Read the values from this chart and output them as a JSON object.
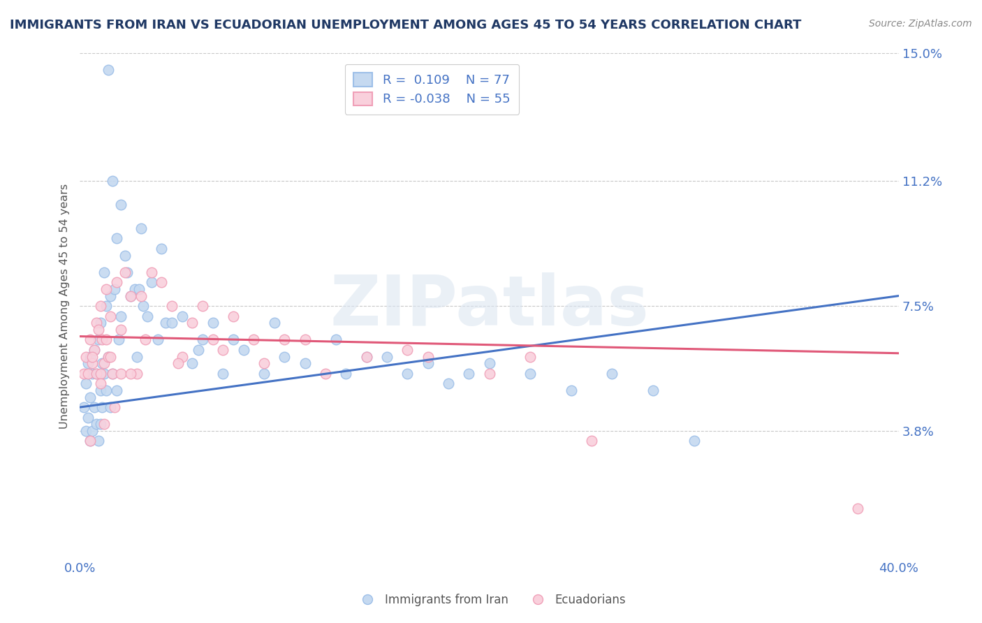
{
  "title": "IMMIGRANTS FROM IRAN VS ECUADORIAN UNEMPLOYMENT AMONG AGES 45 TO 54 YEARS CORRELATION CHART",
  "source": "Source: ZipAtlas.com",
  "ylabel": "Unemployment Among Ages 45 to 54 years",
  "xlabel": "",
  "xlim": [
    0.0,
    40.0
  ],
  "ylim": [
    0.0,
    15.0
  ],
  "yticks": [
    3.8,
    7.5,
    11.2,
    15.0
  ],
  "xticks": [
    0.0,
    40.0
  ],
  "series1_label": "Immigrants from Iran",
  "series1_R": "0.109",
  "series1_N": "77",
  "series1_color": "#c5d9f0",
  "series1_edge_color": "#9dbfe8",
  "series1_line_color": "#4472c4",
  "series2_label": "Ecuadorians",
  "series2_R": "-0.038",
  "series2_N": "55",
  "series2_color": "#f9d0dc",
  "series2_edge_color": "#f0a0b8",
  "series2_line_color": "#e05878",
  "title_color": "#1f3864",
  "axis_color": "#4472c4",
  "grid_color": "#c8c8c8",
  "watermark": "ZIPatlas",
  "background_color": "#ffffff",
  "trend1_x0": 0.0,
  "trend1_y0": 4.5,
  "trend1_x1": 40.0,
  "trend1_y1": 7.8,
  "trend2_x0": 0.0,
  "trend2_y0": 6.6,
  "trend2_x1": 40.0,
  "trend2_y1": 6.1,
  "series1_x": [
    0.2,
    0.3,
    0.3,
    0.4,
    0.4,
    0.5,
    0.5,
    0.5,
    0.6,
    0.6,
    0.7,
    0.7,
    0.8,
    0.8,
    0.9,
    0.9,
    1.0,
    1.0,
    1.0,
    1.1,
    1.1,
    1.2,
    1.2,
    1.3,
    1.3,
    1.4,
    1.5,
    1.5,
    1.6,
    1.7,
    1.8,
    1.8,
    1.9,
    2.0,
    2.2,
    2.3,
    2.5,
    2.7,
    2.9,
    3.1,
    3.3,
    3.5,
    3.8,
    4.2,
    4.5,
    5.0,
    5.5,
    6.0,
    6.5,
    7.0,
    8.0,
    9.0,
    10.0,
    11.0,
    12.5,
    14.0,
    16.0,
    18.0,
    20.0,
    22.0,
    24.0,
    26.0,
    28.0,
    3.0,
    4.0,
    5.8,
    7.5,
    9.5,
    13.0,
    15.0,
    17.0,
    19.0,
    30.0,
    2.0,
    1.6,
    1.4,
    2.8
  ],
  "series1_y": [
    4.5,
    3.8,
    5.2,
    4.2,
    5.8,
    3.5,
    4.8,
    6.0,
    3.8,
    5.5,
    4.5,
    6.2,
    4.0,
    5.5,
    3.5,
    6.5,
    4.0,
    5.0,
    7.0,
    4.5,
    5.8,
    5.5,
    8.5,
    5.0,
    7.5,
    6.0,
    4.5,
    7.8,
    5.5,
    8.0,
    5.0,
    9.5,
    6.5,
    7.2,
    9.0,
    8.5,
    7.8,
    8.0,
    8.0,
    7.5,
    7.2,
    8.2,
    6.5,
    7.0,
    7.0,
    7.2,
    5.8,
    6.5,
    7.0,
    5.5,
    6.2,
    5.5,
    6.0,
    5.8,
    6.5,
    6.0,
    5.5,
    5.2,
    5.8,
    5.5,
    5.0,
    5.5,
    5.0,
    9.8,
    9.2,
    6.2,
    6.5,
    7.0,
    5.5,
    6.0,
    5.8,
    5.5,
    3.5,
    10.5,
    11.2,
    14.5,
    6.0
  ],
  "series2_x": [
    0.2,
    0.3,
    0.4,
    0.5,
    0.6,
    0.7,
    0.8,
    0.8,
    0.9,
    1.0,
    1.0,
    1.1,
    1.2,
    1.3,
    1.3,
    1.4,
    1.5,
    1.6,
    1.8,
    2.0,
    2.2,
    2.5,
    2.8,
    3.0,
    3.5,
    4.0,
    4.5,
    5.5,
    6.0,
    7.0,
    8.5,
    10.0,
    12.0,
    14.0,
    16.0,
    20.0,
    25.0,
    38.0,
    0.6,
    1.0,
    1.5,
    2.0,
    2.5,
    3.2,
    5.0,
    9.0,
    7.5,
    22.0,
    1.7,
    1.2,
    0.5,
    4.8,
    6.5,
    11.0,
    17.0
  ],
  "series2_y": [
    5.5,
    6.0,
    5.5,
    6.5,
    5.8,
    6.2,
    5.5,
    7.0,
    6.8,
    5.5,
    7.5,
    6.5,
    5.8,
    6.5,
    8.0,
    6.0,
    7.2,
    5.5,
    8.2,
    6.8,
    8.5,
    7.8,
    5.5,
    7.8,
    8.5,
    8.2,
    7.5,
    7.0,
    7.5,
    6.2,
    6.5,
    6.5,
    5.5,
    6.0,
    6.2,
    5.5,
    3.5,
    1.5,
    6.0,
    5.2,
    6.0,
    5.5,
    5.5,
    6.5,
    6.0,
    5.8,
    7.2,
    6.0,
    4.5,
    4.0,
    3.5,
    5.8,
    6.5,
    6.5,
    6.0
  ]
}
